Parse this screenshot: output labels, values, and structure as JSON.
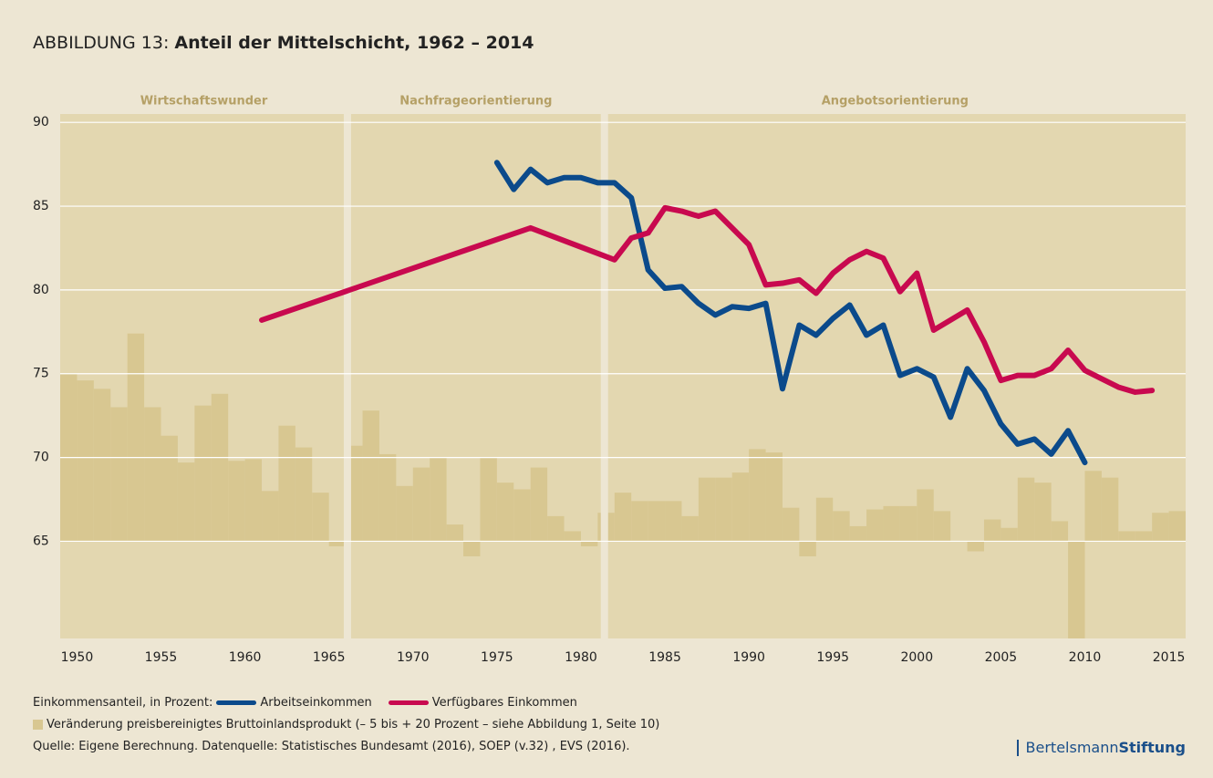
{
  "chart_data": {
    "type": "line",
    "title_prefix": "ABBILDUNG 13: ",
    "title": "Anteil der Mittelschicht, 1962 – 2014",
    "periods": [
      {
        "label": "Wirtschaftswunder",
        "start": 1949,
        "end": 1966.1
      },
      {
        "label": "Nachfrageorientierung",
        "start": 1966.1,
        "end": 1981.4
      },
      {
        "label": "Angebotsorientierung",
        "start": 1981.4,
        "end": 2016
      }
    ],
    "xlim": [
      1949,
      2016
    ],
    "xticks": [
      1950,
      1955,
      1960,
      1965,
      1970,
      1975,
      1980,
      1985,
      1990,
      1995,
      2000,
      2005,
      2010,
      2015
    ],
    "ylim": [
      59.2,
      90.5
    ],
    "yticks": [
      65,
      70,
      75,
      80,
      85,
      90
    ],
    "y2lim": [
      -5.8,
      25.5
    ],
    "grid": true,
    "legend_title": "Einkommensanteil, in Prozent:",
    "series": [
      {
        "name": "Arbeitseinkommen",
        "color": "#0b4a8b",
        "x": [
          1975,
          1976,
          1977,
          1978,
          1979,
          1980,
          1981,
          1982,
          1983,
          1984,
          1985,
          1986,
          1987,
          1988,
          1989,
          1990,
          1991,
          1992,
          1993,
          1994,
          1995,
          1996,
          1997,
          1998,
          1999,
          2000,
          2001,
          2002,
          2003,
          2004,
          2005,
          2006,
          2007,
          2008,
          2009,
          2010
        ],
        "values": [
          87.6,
          86.0,
          87.2,
          86.4,
          86.7,
          86.7,
          86.4,
          86.4,
          85.5,
          81.2,
          80.1,
          80.2,
          79.2,
          78.5,
          79.0,
          78.9,
          79.2,
          74.1,
          77.9,
          77.3,
          78.3,
          79.1,
          77.3,
          77.9,
          74.9,
          75.3,
          74.8,
          72.4,
          75.3,
          74.0,
          72.0,
          70.8,
          71.1,
          70.2,
          71.6,
          69.7
        ]
      },
      {
        "name": "Verfügbares Einkommen",
        "color": "#c8094f",
        "x": [
          1961,
          1977,
          1982,
          1983,
          1984,
          1985,
          1986,
          1987,
          1988,
          1989,
          1990,
          1991,
          1992,
          1993,
          1994,
          1995,
          1996,
          1997,
          1998,
          1999,
          2000,
          2001,
          2002,
          2003,
          2004,
          2005,
          2006,
          2007,
          2008,
          2009,
          2010,
          2011,
          2012,
          2013,
          2014
        ],
        "values": [
          78.2,
          83.7,
          81.8,
          83.1,
          83.4,
          84.9,
          84.7,
          84.4,
          84.7,
          83.7,
          82.7,
          80.3,
          80.4,
          80.6,
          79.8,
          81.0,
          81.8,
          82.3,
          81.9,
          79.9,
          81.0,
          77.6,
          78.2,
          78.8,
          76.9,
          74.6,
          74.9,
          74.9,
          75.3,
          76.4,
          75.2,
          74.7,
          74.2,
          73.9,
          74.0
        ]
      },
      {
        "name": "Veränderung preisbereinigtes Bruttoinlandsprodukt (– 5 bis + 20 Prozent – siehe Abbildung 1, Seite 10)",
        "color": "#d8c791",
        "type": "bar",
        "axis": "y2",
        "x": [
          1949,
          1950,
          1951,
          1952,
          1953,
          1954,
          1955,
          1956,
          1957,
          1958,
          1959,
          1960,
          1961,
          1962,
          1963,
          1964,
          1965,
          1966,
          1967,
          1968,
          1969,
          1970,
          1971,
          1972,
          1973,
          1974,
          1975,
          1976,
          1977,
          1978,
          1979,
          1980,
          1981,
          1982,
          1983,
          1984,
          1985,
          1986,
          1987,
          1988,
          1989,
          1990,
          1991,
          1992,
          1993,
          1994,
          1995,
          1996,
          1997,
          1998,
          1999,
          2000,
          2001,
          2002,
          2003,
          2004,
          2005,
          2006,
          2007,
          2008,
          2009,
          2010,
          2011,
          2012,
          2013,
          2014,
          2015
        ],
        "values": [
          10.0,
          9.6,
          9.1,
          8.0,
          12.4,
          8.0,
          6.3,
          4.7,
          8.1,
          8.8,
          4.8,
          4.9,
          3.0,
          6.9,
          5.6,
          2.9,
          -0.3,
          5.7,
          7.8,
          5.2,
          3.3,
          4.4,
          5.0,
          1.0,
          -0.9,
          5.0,
          3.5,
          3.1,
          4.4,
          1.5,
          0.6,
          -0.3,
          1.7,
          2.9,
          2.4,
          2.4,
          2.4,
          1.5,
          3.8,
          3.8,
          4.1,
          5.5,
          5.3,
          2.0,
          -0.9,
          2.6,
          1.8,
          0.9,
          1.9,
          2.1,
          2.1,
          3.1,
          1.8,
          0,
          -0.6,
          1.3,
          0.8,
          3.8,
          3.5,
          1.2,
          -5.8,
          4.2,
          3.8,
          0.6,
          0.6,
          1.7,
          1.8
        ]
      }
    ],
    "source": "Quelle: Eigene Berechnung. Datenquelle: Statistisches Bundesamt (2016), SOEP (v.32) , EVS (2016).",
    "brand": [
      "Bertelsmann",
      "Stiftung"
    ]
  }
}
